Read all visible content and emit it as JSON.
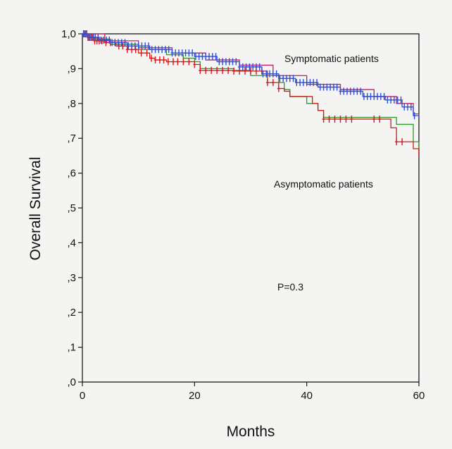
{
  "chart_data": {
    "type": "line",
    "title": "",
    "xlabel": "Months",
    "ylabel": "Overall Survival",
    "xlim": [
      0,
      60
    ],
    "ylim": [
      0,
      1
    ],
    "x_ticks": [
      "0",
      "20",
      "40",
      "60"
    ],
    "y_ticks": [
      ",0",
      ",1",
      ",2",
      ",3",
      ",4",
      ",5",
      ",6",
      ",7",
      ",8",
      ",9",
      "1,0"
    ],
    "grid": false,
    "annotations": {
      "symptomatic": "Symptomatic patients",
      "asymptomatic": "Asymptomatic patients",
      "pvalue": "P=0.3"
    },
    "series": [
      {
        "color": "#d81818",
        "step": [
          [
            0,
            1.0
          ],
          [
            1,
            0.99
          ],
          [
            2,
            0.98
          ],
          [
            4,
            0.975
          ],
          [
            6,
            0.965
          ],
          [
            8,
            0.955
          ],
          [
            10,
            0.945
          ],
          [
            12,
            0.93
          ],
          [
            13,
            0.925
          ],
          [
            15,
            0.92
          ],
          [
            20,
            0.912
          ],
          [
            21,
            0.895
          ],
          [
            27,
            0.893
          ],
          [
            33,
            0.86
          ],
          [
            35,
            0.843
          ],
          [
            36,
            0.835
          ],
          [
            37,
            0.82
          ],
          [
            41,
            0.8
          ],
          [
            42,
            0.78
          ],
          [
            43,
            0.755
          ],
          [
            55,
            0.73
          ],
          [
            56,
            0.69
          ],
          [
            59,
            0.67
          ],
          [
            60,
            0.65
          ]
        ],
        "censored": [
          0.3,
          0.6,
          1.0,
          1.3,
          1.7,
          2.2,
          2.6,
          3.0,
          3.5,
          4.2,
          5.0,
          5.8,
          6.5,
          7.2,
          8.0,
          8.8,
          9.5,
          10.5,
          11.5,
          12.3,
          13.0,
          13.8,
          14.5,
          15.3,
          16.2,
          17.0,
          18.0,
          19.0,
          20.0,
          21.0,
          22.0,
          23.0,
          24.0,
          25.0,
          26.0,
          27.0,
          28.0,
          29.0,
          30.0,
          31.0,
          32.0,
          33.0,
          34.0,
          35.0,
          43.0,
          44.0,
          45.0,
          46.0,
          47.0,
          48.0,
          52.0,
          53.0,
          56.0,
          57.0
        ]
      },
      {
        "color": "#2f4fd8",
        "step": [
          [
            0,
            1.0
          ],
          [
            1,
            0.99
          ],
          [
            3,
            0.982
          ],
          [
            5,
            0.975
          ],
          [
            8,
            0.965
          ],
          [
            12,
            0.955
          ],
          [
            16,
            0.945
          ],
          [
            20,
            0.935
          ],
          [
            24,
            0.92
          ],
          [
            28,
            0.905
          ],
          [
            32,
            0.885
          ],
          [
            35,
            0.872
          ],
          [
            38,
            0.86
          ],
          [
            42,
            0.847
          ],
          [
            46,
            0.835
          ],
          [
            50,
            0.82
          ],
          [
            54,
            0.81
          ],
          [
            57,
            0.79
          ],
          [
            59,
            0.765
          ],
          [
            60,
            0.76
          ]
        ],
        "censored": [
          0.2,
          0.5,
          0.8,
          1.1,
          1.5,
          1.9,
          2.3,
          2.8,
          3.3,
          3.8,
          4.3,
          4.8,
          5.3,
          5.8,
          6.4,
          7.0,
          7.6,
          8.2,
          8.8,
          9.4,
          10.0,
          10.6,
          11.2,
          11.8,
          12.4,
          13.0,
          13.6,
          14.2,
          14.8,
          15.4,
          16.0,
          16.6,
          17.2,
          17.8,
          18.4,
          19.0,
          19.6,
          20.2,
          20.8,
          21.4,
          22.0,
          22.6,
          23.2,
          23.8,
          24.4,
          25.0,
          25.6,
          26.2,
          26.8,
          27.4,
          28.0,
          28.6,
          29.2,
          29.8,
          30.4,
          31.0,
          31.6,
          32.2,
          32.8,
          33.4,
          34.0,
          34.6,
          35.2,
          35.8,
          36.4,
          37.0,
          37.6,
          38.2,
          38.8,
          39.4,
          40.0,
          40.6,
          41.2,
          41.8,
          42.4,
          43.0,
          43.6,
          44.2,
          44.8,
          45.4,
          46.0,
          46.6,
          47.2,
          47.8,
          48.4,
          49.0,
          49.6,
          50.2,
          50.8,
          51.4,
          52.0,
          52.6,
          53.2,
          53.8,
          54.4,
          55.0,
          55.6,
          56.2,
          56.8,
          57.4,
          58.0,
          58.6,
          59.2
        ]
      }
    ],
    "extra_lines": [
      {
        "color": "#2e9a2e",
        "step": [
          [
            0,
            1.0
          ],
          [
            2,
            0.985
          ],
          [
            5,
            0.97
          ],
          [
            10,
            0.955
          ],
          [
            15,
            0.94
          ],
          [
            18,
            0.93
          ],
          [
            20,
            0.92
          ],
          [
            21,
            0.9
          ],
          [
            27,
            0.895
          ],
          [
            30,
            0.88
          ],
          [
            35,
            0.86
          ],
          [
            36,
            0.84
          ],
          [
            37,
            0.82
          ],
          [
            40,
            0.8
          ],
          [
            42,
            0.78
          ],
          [
            43,
            0.76
          ],
          [
            56,
            0.74
          ],
          [
            59,
            0.69
          ],
          [
            60,
            0.65
          ]
        ]
      },
      {
        "color": "#c0206a",
        "step": [
          [
            0,
            1.0
          ],
          [
            4,
            0.98
          ],
          [
            10,
            0.96
          ],
          [
            16,
            0.945
          ],
          [
            22,
            0.925
          ],
          [
            28,
            0.91
          ],
          [
            34,
            0.88
          ],
          [
            40,
            0.855
          ],
          [
            46,
            0.84
          ],
          [
            52,
            0.82
          ],
          [
            56,
            0.8
          ],
          [
            59,
            0.77
          ],
          [
            60,
            0.765
          ]
        ]
      }
    ]
  }
}
